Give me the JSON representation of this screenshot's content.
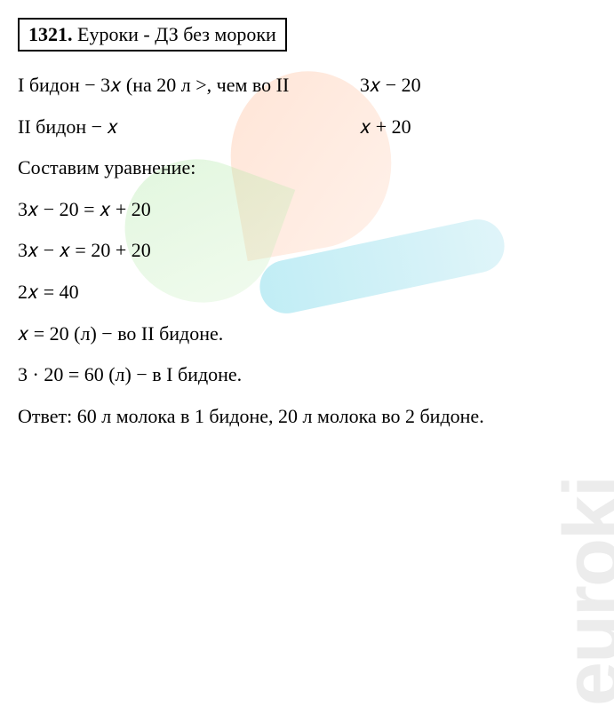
{
  "title": {
    "number": "1321.",
    "text": " Еуроки - ДЗ без мороки"
  },
  "lines": {
    "l1_left": "I бидон − 3𝑥 (на 20 л >, чем во II",
    "l1_right": "3𝑥 − 20",
    "l2_left": "II бидон − 𝑥",
    "l2_right": "𝑥 + 20",
    "l3": "Составим уравнение:",
    "l4": "3𝑥 − 20 = 𝑥 + 20",
    "l5": "3𝑥 − 𝑥 = 20 + 20",
    "l6": "2𝑥 = 40",
    "l7": "𝑥 = 20 (л) − во II бидоне.",
    "l8": "3 · 20 = 60 (л) − в I бидоне.",
    "l9": "Ответ: 60 л молока в 1 бидоне, 20 л молока во 2 бидоне."
  },
  "watermark": "euroki",
  "colors": {
    "text": "#000000",
    "background": "#ffffff",
    "wm_text": "rgba(200,200,200,0.35)"
  },
  "fontsize": {
    "body": 22,
    "watermark": 90
  }
}
